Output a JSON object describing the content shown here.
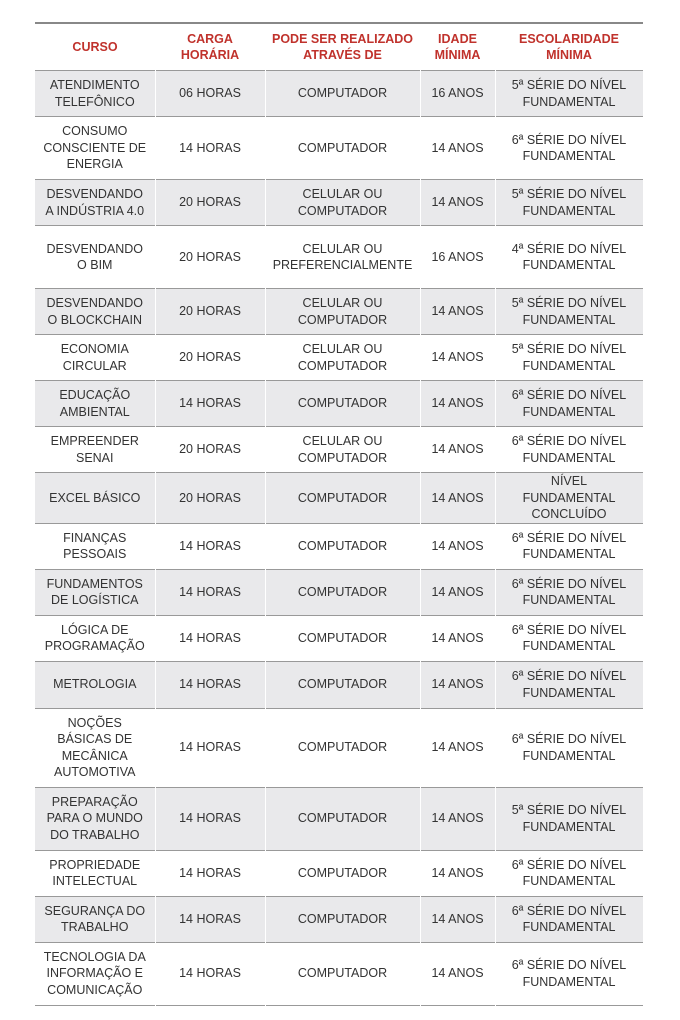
{
  "headers": [
    "CURSO",
    "CARGA HORÁRIA",
    "PODE SER REALIZADO ATRAVÉS DE",
    "IDADE MÍNIMA",
    "ESCOLARIDADE MÍNIMA"
  ],
  "rows": [
    [
      "ATENDIMENTO TELEFÔNICO",
      "06 HORAS",
      "COMPUTADOR",
      "16 ANOS",
      "5ª SÉRIE DO NÍVEL FUNDAMENTAL"
    ],
    [
      "CONSUMO CONSCIENTE DE ENERGIA",
      "14 HORAS",
      "COMPUTADOR",
      "14 ANOS",
      "6ª SÉRIE DO NÍVEL FUNDAMENTAL"
    ],
    [
      "DESVENDANDO A INDÚSTRIA 4.0",
      "20 HORAS",
      "CELULAR OU COMPUTADOR",
      "14 ANOS",
      "5ª SÉRIE DO NÍVEL FUNDAMENTAL"
    ],
    [
      "DESVENDANDO O BIM",
      "20 HORAS",
      "CELULAR OU PREFERENCIALMENTE",
      "16 ANOS",
      "4ª SÉRIE DO NÍVEL FUNDAMENTAL"
    ],
    [
      "DESVENDANDO O BLOCKCHAIN",
      "20 HORAS",
      "CELULAR OU COMPUTADOR",
      "14 ANOS",
      "5ª SÉRIE DO NÍVEL FUNDAMENTAL"
    ],
    [
      "ECONOMIA CIRCULAR",
      "20 HORAS",
      "CELULAR OU COMPUTADOR",
      "14 ANOS",
      "5ª SÉRIE DO NÍVEL FUNDAMENTAL"
    ],
    [
      "EDUCAÇÃO AMBIENTAL",
      "14 HORAS",
      "COMPUTADOR",
      "14 ANOS",
      "6ª SÉRIE DO NÍVEL FUNDAMENTAL"
    ],
    [
      "EMPREENDER SENAI",
      "20 HORAS",
      "CELULAR OU COMPUTADOR",
      "14 ANOS",
      "6ª SÉRIE DO NÍVEL FUNDAMENTAL"
    ],
    [
      "EXCEL BÁSICO",
      "20 HORAS",
      "COMPUTADOR",
      "14 ANOS",
      "NÍVEL FUNDAMENTAL CONCLUÍDO"
    ],
    [
      "FINANÇAS PESSOAIS",
      "14 HORAS",
      "COMPUTADOR",
      "14 ANOS",
      "6ª SÉRIE DO NÍVEL FUNDAMENTAL"
    ],
    [
      "FUNDAMENTOS DE LOGÍSTICA",
      "14 HORAS",
      "COMPUTADOR",
      "14 ANOS",
      "6ª SÉRIE DO NÍVEL FUNDAMENTAL"
    ],
    [
      "LÓGICA DE PROGRAMAÇÃO",
      "14 HORAS",
      "COMPUTADOR",
      "14 ANOS",
      "6ª SÉRIE DO NÍVEL FUNDAMENTAL"
    ],
    [
      "METROLOGIA",
      "14 HORAS",
      "COMPUTADOR",
      "14 ANOS",
      "6ª SÉRIE DO NÍVEL FUNDAMENTAL"
    ],
    [
      "NOÇÕES BÁSICAS DE MECÂNICA AUTOMOTIVA",
      "14 HORAS",
      "COMPUTADOR",
      "14 ANOS",
      "6ª SÉRIE DO NÍVEL FUNDAMENTAL"
    ],
    [
      "PREPARAÇÃO PARA O MUNDO DO TRABALHO",
      "14 HORAS",
      "COMPUTADOR",
      "14 ANOS",
      "5ª SÉRIE DO NÍVEL FUNDAMENTAL"
    ],
    [
      "PROPRIEDADE INTELECTUAL",
      "14 HORAS",
      "COMPUTADOR",
      "14 ANOS",
      "6ª SÉRIE DO NÍVEL FUNDAMENTAL"
    ],
    [
      "SEGURANÇA DO TRABALHO",
      "14 HORAS",
      "COMPUTADOR",
      "14 ANOS",
      "6ª SÉRIE DO NÍVEL FUNDAMENTAL"
    ],
    [
      "TECNOLOGIA DA INFORMAÇÃO E COMUNICAÇÃO",
      "14 HORAS",
      "COMPUTADOR",
      "14 ANOS",
      "6ª SÉRIE DO NÍVEL FUNDAMENTAL"
    ]
  ],
  "colors": {
    "header_text": "#c0322c",
    "row_shade": "#e9e9eb",
    "text": "#333333"
  }
}
